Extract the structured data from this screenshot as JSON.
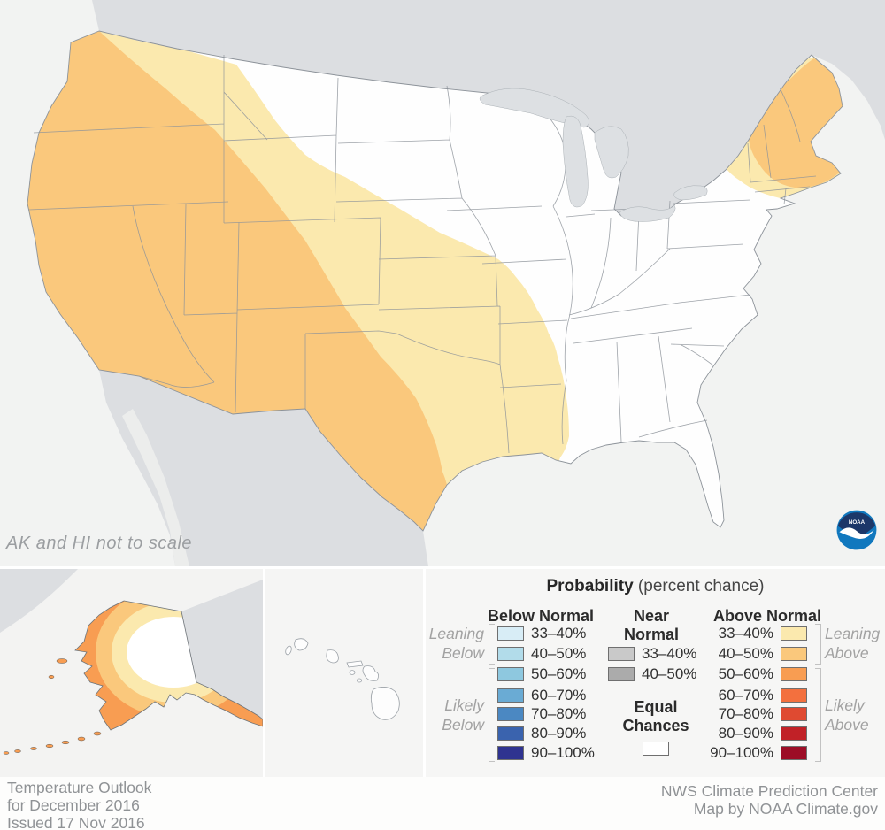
{
  "map": {
    "annotation": "AK and HI not to scale",
    "colors": {
      "ocean": "#f2f3f2",
      "foreign_land": "#dcdee1",
      "lakes": "#dde0e3",
      "gulf_of_california": "#ecedec",
      "us_fill": "#fefefe",
      "band_33_40": "#fbe9ae",
      "band_40_50": "#fac87c",
      "band_50_60": "#f89d52"
    }
  },
  "legend": {
    "title": "Probability",
    "title_suffix": " (percent chance)",
    "below": {
      "header": "Below Normal",
      "groups": {
        "leaning": [
          "Leaning",
          "Below"
        ],
        "likely": [
          "Likely",
          "Below"
        ]
      },
      "entries": [
        {
          "range": "33–40%",
          "color": "#d8edf6"
        },
        {
          "range": "40–50%",
          "color": "#b2dcea"
        },
        {
          "range": "50–60%",
          "color": "#8ec8df"
        },
        {
          "range": "60–70%",
          "color": "#6aabd4"
        },
        {
          "range": "70–80%",
          "color": "#4b88c2"
        },
        {
          "range": "80–90%",
          "color": "#3a63ae"
        },
        {
          "range": "90–100%",
          "color": "#2f3390"
        }
      ]
    },
    "near": {
      "header": "Near Normal",
      "entries": [
        {
          "range": "33–40%",
          "color": "#c9c9c9"
        },
        {
          "range": "40–50%",
          "color": "#ababab"
        }
      ],
      "equal_chances": [
        "Equal",
        "Chances"
      ],
      "equal_color": "#ffffff"
    },
    "above": {
      "header": "Above Normal",
      "groups": {
        "leaning": [
          "Leaning",
          "Above"
        ],
        "likely": [
          "Likely",
          "Above"
        ]
      },
      "entries": [
        {
          "range": "33–40%",
          "color": "#fbe9ae"
        },
        {
          "range": "40–50%",
          "color": "#fac87c"
        },
        {
          "range": "50–60%",
          "color": "#f89d52"
        },
        {
          "range": "60–70%",
          "color": "#f3703e"
        },
        {
          "range": "70–80%",
          "color": "#df4a31"
        },
        {
          "range": "80–90%",
          "color": "#c12127"
        },
        {
          "range": "90–100%",
          "color": "#9c0d26"
        }
      ]
    }
  },
  "footer": {
    "left_lines": [
      "Temperature Outlook",
      "for December 2016",
      "Issued 17 Nov 2016"
    ],
    "right_lines": [
      "NWS Climate Prediction Center",
      "Map by NOAA Climate.gov"
    ]
  },
  "noaa_logo": {
    "text": "NOAA"
  }
}
